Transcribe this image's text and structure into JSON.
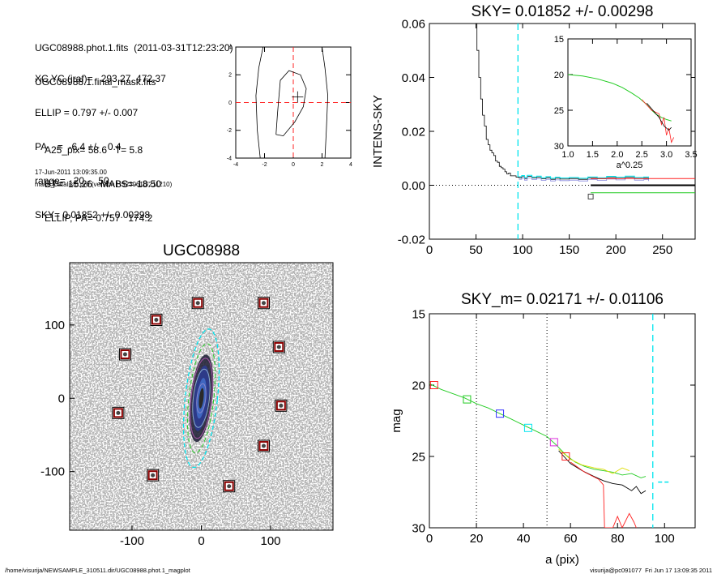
{
  "header": {
    "lines_a": [
      "UGC08988.phot.1.fits  (2011-03-31T12:23:20)",
      "UGC08988.1.final_mask.fits"
    ],
    "lines_b": [
      "XC,YC (iraf)=   293.27, 472.37",
      "ELLIP = 0.797 +/- 0.007",
      "PA    =  -6.4 +/-   0.4",
      "range=   20.-   50.",
      "SKY= 0.01852 +/- 0.00298"
    ],
    "lines_c": [
      "A25_pix= 58.6   T= 5.8",
      "BT=  15.26   MABS=-18.50",
      "ELLIP, PA= 0.757   174.2"
    ],
    "date": "17-Jun-2011 13:09:35.00",
    "program": "make_datalist0.pro (version HS230610/211210)"
  },
  "footer": {
    "left": "/home/visurija/NEWSAMPLE_310511.dir/UGC08988.phot.1_magplot",
    "right": "visurija@pc091077  Fri Jun 17 13:09:35 2011"
  },
  "colors": {
    "cyan": "#00e5ee",
    "red": "#ff2020",
    "green": "#22cc22",
    "blue": "#3030ff",
    "magenta": "#dd33dd",
    "mask": "#8b0000",
    "yellow": "#cccc00"
  },
  "chart_data": [
    {
      "id": "center-contour",
      "type": "line",
      "xticks": [
        "-4",
        "-2",
        "0",
        "2",
        "4"
      ],
      "yticks": [
        "-4",
        "-2",
        "0",
        "2",
        "4"
      ],
      "xlim": [
        -4,
        4
      ],
      "ylim": [
        -4,
        4
      ],
      "cross": [
        0.3,
        0.4
      ],
      "contours": [
        [
          [
            -1.2,
            -2.3
          ],
          [
            -1.1,
            -0.8
          ],
          [
            -0.9,
            1.6
          ],
          [
            -0.3,
            2.3
          ],
          [
            0.5,
            2.0
          ],
          [
            0.9,
            1.0
          ],
          [
            0.7,
            -0.3
          ],
          [
            0.1,
            -1.4
          ],
          [
            -0.7,
            -2.4
          ],
          [
            -1.2,
            -2.3
          ]
        ],
        [
          [
            -2.3,
            -4.0
          ],
          [
            -2.5,
            -2.0
          ],
          [
            -2.6,
            0.5
          ],
          [
            -2.4,
            2.5
          ],
          [
            -2.1,
            4.0
          ]
        ],
        [
          [
            2.2,
            -4.0
          ],
          [
            2.3,
            -2.0
          ],
          [
            2.4,
            0.5
          ],
          [
            2.2,
            2.5
          ],
          [
            2.0,
            4.0
          ]
        ]
      ]
    },
    {
      "id": "sky-profile",
      "type": "line",
      "title": "SKY= 0.01852 +/- 0.00298",
      "ylabel": "INTENS-SKY",
      "xlim": [
        0,
        285
      ],
      "ylim": [
        -0.02,
        0.06
      ],
      "xticks": [
        "0",
        "50",
        "100",
        "150",
        "200",
        "250"
      ],
      "yticks": [
        "-0.02",
        "0.00",
        "0.02",
        "0.04",
        "0.06"
      ],
      "sky_radius": 95,
      "profile": [
        [
          49,
          0.06
        ],
        [
          51,
          0.05
        ],
        [
          53,
          0.04
        ],
        [
          55,
          0.032
        ],
        [
          57,
          0.026
        ],
        [
          59,
          0.022
        ],
        [
          61,
          0.017
        ],
        [
          63,
          0.015
        ],
        [
          65,
          0.013
        ],
        [
          67,
          0.012
        ],
        [
          69,
          0.011
        ],
        [
          71,
          0.009
        ],
        [
          73,
          0.0085
        ],
        [
          75,
          0.007
        ],
        [
          77,
          0.0065
        ],
        [
          79,
          0.006
        ],
        [
          81,
          0.005
        ],
        [
          83,
          0.0042
        ],
        [
          85,
          0.0045
        ],
        [
          87,
          0.0035
        ],
        [
          90,
          0.0035
        ],
        [
          93,
          0.003
        ],
        [
          96,
          0.0028
        ],
        [
          99,
          0.0032
        ],
        [
          102,
          0.0025
        ],
        [
          105,
          0.0033
        ],
        [
          110,
          0.0027
        ],
        [
          115,
          0.003
        ],
        [
          120,
          0.0024
        ],
        [
          125,
          0.0028
        ],
        [
          130,
          0.0022
        ],
        [
          135,
          0.0026
        ],
        [
          140,
          0.0023
        ],
        [
          150,
          0.0025
        ],
        [
          160,
          0.0022
        ],
        [
          170,
          0.0027
        ],
        [
          180,
          0.0024
        ],
        [
          190,
          0.0029
        ],
        [
          200,
          0.0026
        ],
        [
          210,
          0.003
        ],
        [
          220,
          0.0025
        ],
        [
          230,
          0.0027
        ],
        [
          235,
          0.0022
        ]
      ],
      "mark": [
        173,
        -0.0042
      ],
      "inset": {
        "xlabel": "a^0.25",
        "xlim": [
          1.0,
          3.5
        ],
        "ylim": [
          30,
          15
        ],
        "xticks": [
          "1.0",
          "1.5",
          "2.0",
          "2.5",
          "3.0",
          "3.5"
        ],
        "yticks": [
          "15",
          "20",
          "25",
          "30"
        ],
        "green": [
          [
            1.0,
            20.0
          ],
          [
            1.3,
            20.2
          ],
          [
            1.6,
            20.6
          ],
          [
            1.9,
            21.2
          ],
          [
            2.1,
            21.8
          ],
          [
            2.3,
            22.6
          ],
          [
            2.45,
            23.3
          ],
          [
            2.6,
            24.2
          ],
          [
            2.7,
            25.0
          ],
          [
            2.8,
            25.6
          ],
          [
            2.9,
            26.0
          ],
          [
            3.0,
            26.3
          ],
          [
            3.1,
            26.5
          ]
        ],
        "red": [
          [
            2.5,
            23.5
          ],
          [
            2.7,
            25.0
          ],
          [
            2.85,
            25.5
          ],
          [
            2.9,
            27.0
          ],
          [
            2.95,
            26.0
          ],
          [
            3.0,
            28.5
          ],
          [
            3.05,
            27.5
          ],
          [
            3.1,
            29.5
          ],
          [
            3.15,
            28.8
          ]
        ],
        "black": [
          [
            2.6,
            24.0
          ],
          [
            2.75,
            25.2
          ],
          [
            2.85,
            26.0
          ],
          [
            2.95,
            27.2
          ],
          [
            3.05,
            27.8
          ],
          [
            3.1,
            27.4
          ]
        ]
      }
    },
    {
      "id": "galaxy-image",
      "type": "scatter",
      "title": "UGC08988",
      "xlim": [
        -190,
        190
      ],
      "ylim": [
        -180,
        185
      ],
      "xticks": [
        "-100",
        "0",
        "100"
      ],
      "yticks": [
        "100",
        "0",
        "-100"
      ],
      "mask_squares": [
        [
          -5,
          130
        ],
        [
          90,
          130
        ],
        [
          -65,
          107
        ],
        [
          -110,
          60
        ],
        [
          112,
          70
        ],
        [
          -120,
          -20
        ],
        [
          115,
          -10
        ],
        [
          90,
          -65
        ],
        [
          -70,
          -105
        ],
        [
          40,
          -120
        ]
      ],
      "ellipses": [
        {
          "a": 20,
          "b": 6,
          "color": "#8888cc"
        },
        {
          "a": 40,
          "b": 11,
          "color": "#88aacc"
        },
        {
          "a": 55,
          "b": 14,
          "color": "#aa55aa"
        },
        {
          "a": 75,
          "b": 17,
          "color": "#22cc22"
        },
        {
          "a": 95,
          "b": 22,
          "color": "#00e5ee"
        }
      ],
      "position_angle": -6.4
    },
    {
      "id": "mag-profile",
      "type": "line",
      "title": "SKY_m=  0.02171 +/- 0.01106",
      "xlabel": "a (pix)",
      "ylabel": "mag",
      "xlim": [
        0,
        113
      ],
      "ylim": [
        30,
        15
      ],
      "xticks": [
        "0",
        "20",
        "40",
        "60",
        "80",
        "100"
      ],
      "yticks": [
        "15",
        "20",
        "25",
        "30"
      ],
      "range_lines": [
        20,
        50
      ],
      "sky_radius": 95,
      "series": [
        {
          "color": "#22cc22",
          "values": [
            [
              0,
              19.9
            ],
            [
              5,
              20.3
            ],
            [
              10,
              20.6
            ],
            [
              15,
              20.9
            ],
            [
              20,
              21.3
            ],
            [
              25,
              21.6
            ],
            [
              30,
              22.0
            ],
            [
              35,
              22.4
            ],
            [
              40,
              22.8
            ],
            [
              45,
              23.2
            ],
            [
              50,
              23.6
            ],
            [
              54,
              24.2
            ],
            [
              58,
              24.9
            ],
            [
              62,
              25.4
            ],
            [
              66,
              25.7
            ],
            [
              70,
              25.9
            ],
            [
              74,
              26.0
            ],
            [
              78,
              26.1
            ],
            [
              82,
              26.3
            ],
            [
              86,
              26.2
            ],
            [
              90,
              26.5
            ],
            [
              92,
              26.4
            ]
          ]
        },
        {
          "color": "#dddd00",
          "values": [
            [
              55,
              24.5
            ],
            [
              60,
              25.2
            ],
            [
              65,
              25.6
            ],
            [
              70,
              25.8
            ],
            [
              74,
              25.9
            ],
            [
              78,
              26.2
            ],
            [
              82,
              25.8
            ],
            [
              85,
              26.0
            ]
          ]
        },
        {
          "color": "#000000",
          "values": [
            [
              55,
              24.6
            ],
            [
              60,
              25.5
            ],
            [
              65,
              26.0
            ],
            [
              70,
              26.4
            ],
            [
              74,
              26.7
            ],
            [
              78,
              26.9
            ],
            [
              82,
              27.0
            ],
            [
              86,
              27.4
            ],
            [
              88,
              27.1
            ],
            [
              90,
              27.6
            ],
            [
              92,
              27.4
            ]
          ]
        },
        {
          "color": "#ff2020",
          "values": [
            [
              60,
              25.4
            ],
            [
              66,
              26.1
            ],
            [
              72,
              26.6
            ],
            [
              74,
              27.0
            ],
            [
              74.5,
              30.0
            ],
            [
              78,
              30.0
            ],
            [
              80,
              29.2
            ],
            [
              82,
              30.0
            ],
            [
              85,
              29.0
            ],
            [
              87,
              29.6
            ],
            [
              88,
              30.0
            ]
          ]
        }
      ],
      "markers": [
        {
          "x": 2,
          "y": 20.0,
          "color": "#ff2020"
        },
        {
          "x": 16,
          "y": 21.0,
          "color": "#22cc22"
        },
        {
          "x": 30,
          "y": 22.0,
          "color": "#3030ff"
        },
        {
          "x": 42,
          "y": 23.0,
          "color": "#00e5ee"
        },
        {
          "x": 53,
          "y": 24.0,
          "color": "#dd33dd"
        },
        {
          "x": 58,
          "y": 25.0,
          "color": "#ff2020"
        }
      ],
      "sky_mark": [
        100,
        26.8
      ]
    }
  ]
}
